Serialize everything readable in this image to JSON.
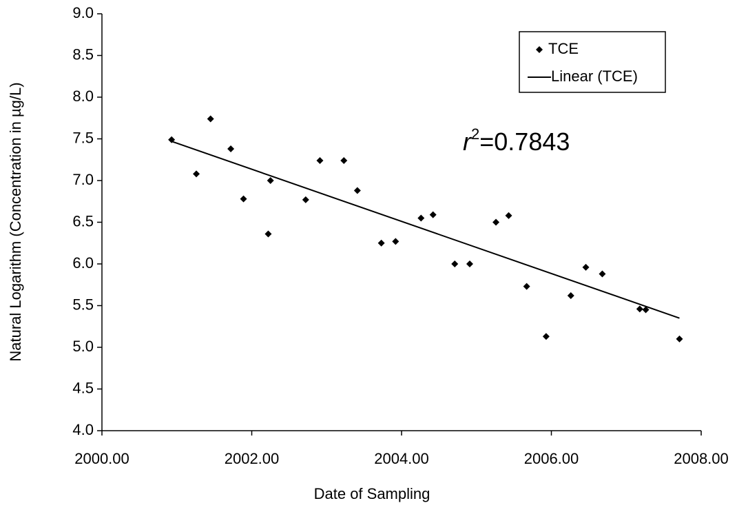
{
  "chart_data": {
    "type": "scatter",
    "x_label": "Date  of Sampling",
    "y_label": "Natural Logarithm (Concentration in µg/L)",
    "annotation": [
      "r",
      "2",
      "=0.7843"
    ],
    "xlim": [
      2000,
      2008
    ],
    "xticks": [
      {
        "value": 2000,
        "label": "2000.00"
      },
      {
        "value": 2002,
        "label": "2002.00"
      },
      {
        "value": 2004,
        "label": "2004.00"
      },
      {
        "value": 2006,
        "label": "2006.00"
      },
      {
        "value": 2008,
        "label": "2008.00"
      }
    ],
    "ylim": [
      4,
      9
    ],
    "yticks": [
      {
        "value": 4,
        "label": "4.0"
      },
      4.5,
      {
        "value": 5,
        "label": "5.0"
      },
      5.5,
      {
        "value": 6,
        "label": "6.0"
      },
      6.5,
      {
        "value": 7,
        "label": "7.0"
      },
      7.5,
      {
        "value": 8,
        "label": "8.0"
      },
      8.5,
      {
        "value": 9,
        "label": "9.0"
      }
    ],
    "grid": false,
    "legend": "top-right",
    "series": [
      {
        "name": "TCE",
        "color": "#000000",
        "marker": "diamond",
        "x": [
          2000.93,
          2001.26,
          2001.45,
          2001.72,
          2001.89,
          2002.25,
          2002.22,
          2002.72,
          2002.91,
          2003.23,
          2003.41,
          2003.73,
          2003.92,
          2004.26,
          2004.42,
          2004.71,
          2004.91,
          2005.26,
          2005.43,
          2005.67,
          2005.93,
          2006.26,
          2006.46,
          2006.68,
          2007.18,
          2007.26,
          2007.71
        ],
        "values": [
          7.49,
          7.08,
          7.74,
          7.38,
          6.78,
          7.0,
          6.36,
          6.77,
          7.24,
          7.24,
          6.88,
          6.25,
          6.27,
          6.55,
          6.59,
          6.0,
          6.0,
          6.5,
          6.58,
          5.73,
          5.13,
          5.62,
          5.96,
          5.88,
          5.46,
          5.45,
          5.1
        ]
      },
      {
        "name": "Linear (TCE)",
        "color": "#000000",
        "marker": "line",
        "x": [
          2000.93,
          2007.71
        ],
        "values": [
          7.47,
          5.35
        ]
      }
    ]
  }
}
